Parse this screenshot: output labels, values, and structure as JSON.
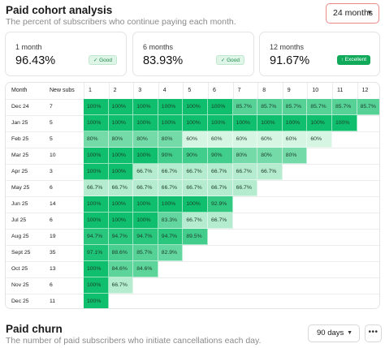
{
  "header": {
    "title": "Paid cohort analysis",
    "subtitle": "The percent of subscribers who continue paying each month.",
    "range_value": "24 months"
  },
  "cards": [
    {
      "label": "1 month",
      "value": "96.43%",
      "badge": "Good",
      "badge_kind": "good"
    },
    {
      "label": "6 months",
      "value": "83.93%",
      "badge": "Good",
      "badge_kind": "good"
    },
    {
      "label": "12 months",
      "value": "91.67%",
      "badge": "Excellent",
      "badge_kind": "excellent"
    }
  ],
  "table": {
    "month_header": "Month",
    "subs_header": "New subs",
    "period_headers": [
      "1",
      "2",
      "3",
      "4",
      "5",
      "6",
      "7",
      "8",
      "9",
      "10",
      "11",
      "12"
    ],
    "rows": [
      {
        "month": "Dec 24",
        "subs": "7",
        "values": [
          "100%",
          "100%",
          "100%",
          "100%",
          "100%",
          "100%",
          "85.7%",
          "85.7%",
          "85.7%",
          "85.7%",
          "85.7%",
          "85.7%"
        ]
      },
      {
        "month": "Jan 25",
        "subs": "5",
        "values": [
          "100%",
          "100%",
          "100%",
          "100%",
          "100%",
          "100%",
          "100%",
          "100%",
          "100%",
          "100%",
          "100%"
        ]
      },
      {
        "month": "Feb 25",
        "subs": "5",
        "values": [
          "80%",
          "80%",
          "80%",
          "80%",
          "60%",
          "60%",
          "60%",
          "60%",
          "60%",
          "60%"
        ]
      },
      {
        "month": "Mar 25",
        "subs": "10",
        "values": [
          "100%",
          "100%",
          "100%",
          "90%",
          "90%",
          "90%",
          "80%",
          "80%",
          "80%"
        ]
      },
      {
        "month": "Apr 25",
        "subs": "3",
        "values": [
          "100%",
          "100%",
          "66.7%",
          "66.7%",
          "66.7%",
          "66.7%",
          "66.7%",
          "66.7%"
        ]
      },
      {
        "month": "May 25",
        "subs": "6",
        "values": [
          "66.7%",
          "66.7%",
          "66.7%",
          "66.7%",
          "66.7%",
          "66.7%",
          "66.7%"
        ]
      },
      {
        "month": "Jun 25",
        "subs": "14",
        "values": [
          "100%",
          "100%",
          "100%",
          "100%",
          "100%",
          "92.9%"
        ]
      },
      {
        "month": "Jul 25",
        "subs": "6",
        "values": [
          "100%",
          "100%",
          "100%",
          "83.3%",
          "66.7%",
          "66.7%"
        ]
      },
      {
        "month": "Aug 25",
        "subs": "19",
        "values": [
          "94.7%",
          "94.7%",
          "94.7%",
          "94.7%",
          "89.5%"
        ]
      },
      {
        "month": "Sept 25",
        "subs": "35",
        "values": [
          "97.1%",
          "88.6%",
          "85.7%",
          "82.9%"
        ]
      },
      {
        "month": "Oct 25",
        "subs": "13",
        "values": [
          "100%",
          "84.6%",
          "84.6%"
        ]
      },
      {
        "month": "Nov 25",
        "subs": "6",
        "values": [
          "100%",
          "66.7%"
        ]
      },
      {
        "month": "Dec 25",
        "subs": "11",
        "values": [
          "100%"
        ]
      }
    ]
  },
  "churn": {
    "title": "Paid churn",
    "subtitle": "The number of paid subscribers who initiate cancellations each day.",
    "range_value": "90 days",
    "more_label": "•••"
  },
  "icons": {
    "dropdown": "chevron-down-icon",
    "check": "check-icon",
    "arrow_up": "arrow-up-icon"
  },
  "colors": {
    "cohort_high": "#0fbf6d",
    "cohort_low": "#d6f5e3",
    "excellent_badge": "#11a95a",
    "good_badge_bg": "#dff5e8",
    "range_select_border": "#e98a8a"
  }
}
